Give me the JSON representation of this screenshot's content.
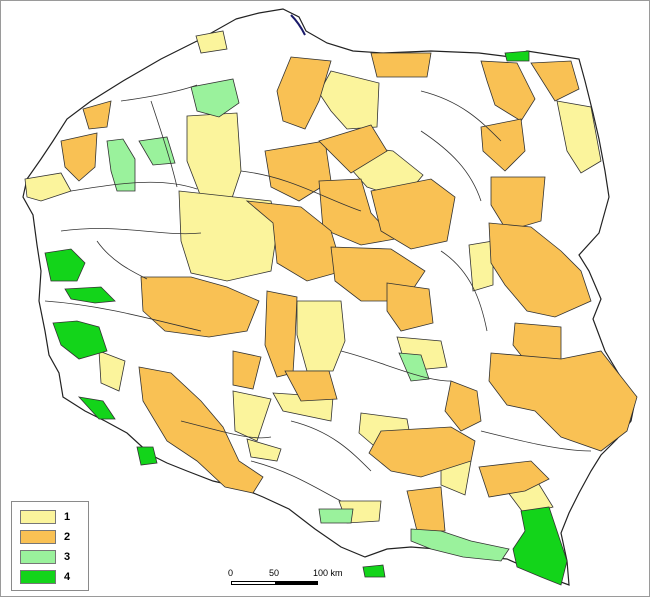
{
  "legend": {
    "items": [
      {
        "label": "1",
        "color": "#fbf49c"
      },
      {
        "label": "2",
        "color": "#f9c154"
      },
      {
        "label": "3",
        "color": "#9af29c"
      },
      {
        "label": "4",
        "color": "#13d41a"
      }
    ]
  },
  "scale": {
    "ticks": [
      "0",
      "50",
      "100 km"
    ]
  },
  "colors": {
    "class_none": "#ffffff",
    "boundary": "#333333",
    "sea": "#000000"
  }
}
